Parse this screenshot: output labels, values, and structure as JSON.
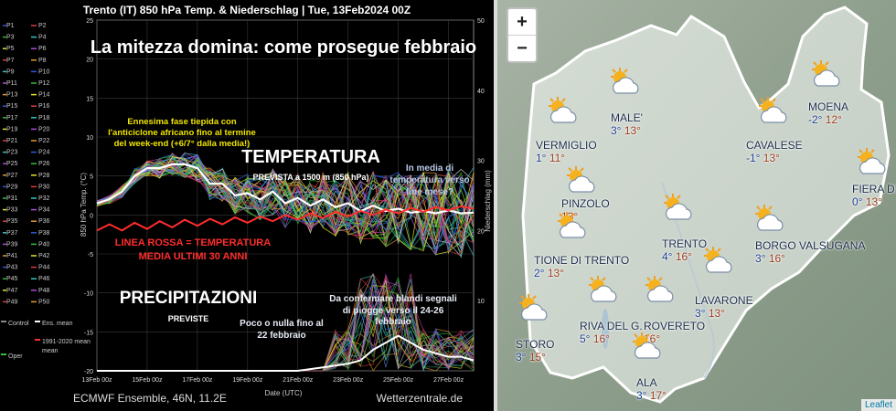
{
  "chart_data": {
    "type": "line",
    "title": "Trento  (IT)  850 hPa Temp. & Niederschlag | Tue, 13Feb2024 00Z",
    "headline": "La mitezza domina: come prosegue febbraio",
    "x_labels": [
      "13Feb 00z",
      "15Feb 00z",
      "17Feb 00z",
      "19Feb 00z",
      "21Feb 00z",
      "23Feb 00z",
      "25Feb 00z",
      "27Feb 00z"
    ],
    "xlabel": "Date (UTC)",
    "ylabel_left": "850 hPa Temp. (°C)",
    "ylabel_right": "Niederschlag (mm)",
    "ylim_left": [
      -20,
      25
    ],
    "yticks_left": [
      25,
      20,
      15,
      10,
      5,
      0,
      -5,
      -10,
      -15,
      -20
    ],
    "ylim_right": [
      0,
      50
    ],
    "yticks_right": [
      50,
      40,
      30,
      20,
      10
    ],
    "footer_left": "ECMWF Ensemble, 46N, 11.2E",
    "footer_right": "Wetterzentrale.de",
    "annotations": {
      "mild_phase": "Ennesima fase tiepida con l'anticiclone africano fino al termine del week-end (+6/7° dalla media!)",
      "temperature_title": "TEMPERATURA",
      "temperature_sub": "PREVISTA a 1500 m (850 hPa)",
      "late_month_question": "In media di temperatura verso fine mese?",
      "red_line_1": "LINEA ROSSA = TEMPERATURA",
      "red_line_2": "MEDIA ULTIMI 30 ANNI",
      "precip_title": "PRECIPITAZIONI",
      "precip_sub": "PREVISTE",
      "little_rain": "Poco o nulla fino al 22 febbraio",
      "rain_signal": "Da confermare blandi segnali di piogge verso il 24-26 febbraio"
    },
    "legend": {
      "members_left": [
        "P1",
        "P3",
        "P5",
        "P7",
        "P9",
        "P11",
        "P13",
        "P15",
        "P17",
        "P19",
        "P21",
        "P23",
        "P25",
        "P27",
        "P29",
        "P31",
        "P33",
        "P35",
        "P37",
        "P39",
        "P41",
        "P43",
        "P45",
        "P47",
        "P49"
      ],
      "members_right": [
        "P2",
        "P4",
        "P6",
        "P8",
        "P10",
        "P12",
        "P14",
        "P16",
        "P18",
        "P20",
        "P22",
        "P24",
        "P26",
        "P28",
        "P30",
        "P32",
        "P34",
        "P36",
        "P38",
        "P40",
        "P42",
        "P44",
        "P46",
        "P48",
        "P50"
      ],
      "extra": [
        "Control",
        "Ens. mean",
        "Oper",
        "1991-2020 mean"
      ]
    },
    "series": [
      {
        "name": "Ens. mean",
        "x": [
          0,
          0.5,
          1,
          1.5,
          2,
          2.5,
          3,
          3.5,
          4,
          4.5,
          5,
          5.5,
          6,
          6.5,
          7,
          7.5,
          8,
          8.5,
          9,
          9.5,
          10,
          10.5,
          11,
          11.5,
          12,
          12.5,
          13,
          13.5,
          14,
          14.5,
          15
        ],
        "values": [
          1.5,
          2,
          3,
          5,
          6,
          6,
          6.5,
          6.5,
          6,
          4,
          4,
          2.5,
          2.8,
          2,
          3,
          1.5,
          2.2,
          1.2,
          2,
          1,
          1.5,
          0.5,
          1.2,
          0.5,
          0.8,
          0.3,
          0.5,
          0.2,
          0.6,
          0.2,
          0.3
        ]
      },
      {
        "name": "1991-2020 mean",
        "x": [
          0,
          0.5,
          1,
          1.5,
          2,
          2.5,
          3,
          3.5,
          4,
          4.5,
          5,
          5.5,
          6,
          6.5,
          7,
          7.5,
          8,
          8.5,
          9,
          9.5,
          10,
          10.5,
          11,
          11.5,
          12,
          12.5,
          13,
          13.5,
          14,
          14.5,
          15
        ],
        "values": [
          -2,
          -1.2,
          -2,
          -1,
          -1.8,
          -0.8,
          -1.6,
          -0.6,
          -1.4,
          -0.5,
          -1.2,
          -0.3,
          -1,
          -0.2,
          -0.8,
          0,
          -0.6,
          0.2,
          -0.4,
          0.4,
          -0.2,
          0.5,
          0,
          0.7,
          0.2,
          0.9,
          0.4,
          1,
          0.6,
          1.1,
          0.8
        ]
      },
      {
        "name": "Ens. mean precip",
        "x": [
          0,
          2,
          4,
          6,
          8,
          9,
          10,
          10.5,
          11,
          11.5,
          12,
          12.5,
          13,
          13.5,
          14,
          14.5,
          15
        ],
        "values": [
          0,
          0,
          0,
          0,
          0,
          0.5,
          1,
          1.5,
          3,
          4,
          5,
          4,
          3,
          2.5,
          2,
          2,
          1.5
        ]
      }
    ]
  },
  "map": {
    "zoom_in": "+",
    "zoom_out": "−",
    "attribution": "Leaflet",
    "cities": [
      {
        "name": "MALE'",
        "tmin": "3°",
        "tmax": "13°"
      },
      {
        "name": "MOENA",
        "tmin": "-2°",
        "tmax": "12°"
      },
      {
        "name": "VERMIGLIO",
        "tmin": "1°",
        "tmax": "11°"
      },
      {
        "name": "CAVALESE",
        "tmin": "-1°",
        "tmax": "13°"
      },
      {
        "name": "FIERA DI PRIMIERO",
        "tmin": "0°",
        "tmax": "13°"
      },
      {
        "name": "PINZOLO",
        "tmin": "",
        "tmax": "13°"
      },
      {
        "name": "TIONE DI TRENTO",
        "tmin": "2°",
        "tmax": "13°"
      },
      {
        "name": "TRENTO",
        "tmin": "4°",
        "tmax": "16°"
      },
      {
        "name": "BORGO VALSUGANA",
        "tmin": "3°",
        "tmax": "16°"
      },
      {
        "name": "LAVARONE",
        "tmin": "3°",
        "tmax": "13°"
      },
      {
        "name": "RIVA DEL G.",
        "tmin": "5°",
        "tmax": "16°"
      },
      {
        "name": "ROVERETO",
        "tmin": "",
        "tmax": "16°"
      },
      {
        "name": "STORO",
        "tmin": "3°",
        "tmax": "15°"
      },
      {
        "name": "ALA",
        "tmin": "3°",
        "tmax": "17°"
      }
    ]
  }
}
